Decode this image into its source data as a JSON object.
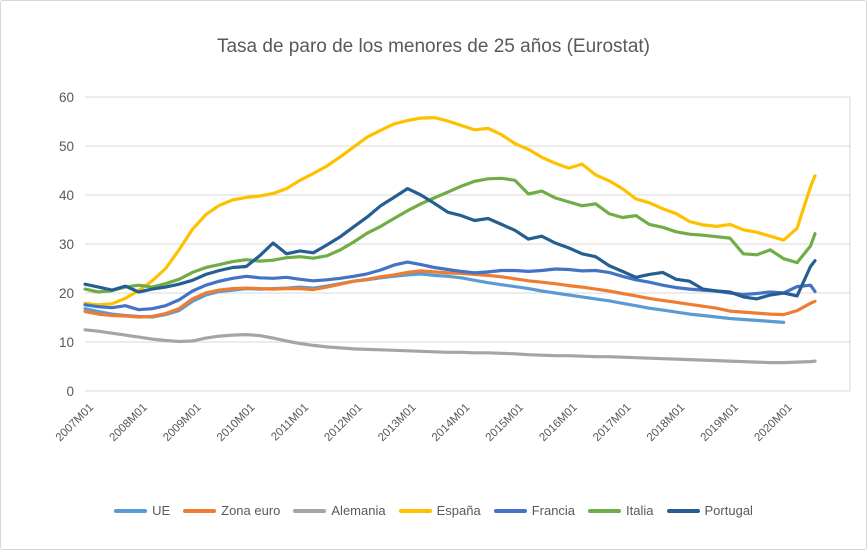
{
  "chart_title": "Tasa de paro de los menores de 25 años (Eurostat)",
  "colors": {
    "text": "#595959",
    "gridline": "#d9d9d9",
    "border": "#d7d7d7"
  },
  "chart_data": {
    "type": "line",
    "title": "Tasa de paro de los menores de 25 años (Eurostat)",
    "xlabel": "",
    "ylabel": "",
    "ylim": [
      0,
      60
    ],
    "yticks": [
      0,
      10,
      20,
      30,
      40,
      50,
      60
    ],
    "grid": "horizontal",
    "legend_position": "bottom",
    "x_tick_labels": [
      "2007M01",
      "2008M01",
      "2009M01",
      "2010M01",
      "2011M01",
      "2012M01",
      "2013M01",
      "2014M01",
      "2015M01",
      "2016M01",
      "2017M01",
      "2018M01",
      "2019M01",
      "2020M01"
    ],
    "categories": [
      "2007M01",
      "2007M04",
      "2007M07",
      "2007M10",
      "2008M01",
      "2008M04",
      "2008M07",
      "2008M10",
      "2009M01",
      "2009M04",
      "2009M07",
      "2009M10",
      "2010M01",
      "2010M04",
      "2010M07",
      "2010M10",
      "2011M01",
      "2011M04",
      "2011M07",
      "2011M10",
      "2012M01",
      "2012M04",
      "2012M07",
      "2012M10",
      "2013M01",
      "2013M04",
      "2013M07",
      "2013M10",
      "2014M01",
      "2014M04",
      "2014M07",
      "2014M10",
      "2015M01",
      "2015M04",
      "2015M07",
      "2015M10",
      "2016M01",
      "2016M04",
      "2016M07",
      "2016M10",
      "2017M01",
      "2017M04",
      "2017M07",
      "2017M10",
      "2018M01",
      "2018M04",
      "2018M07",
      "2018M10",
      "2019M01",
      "2019M04",
      "2019M07",
      "2019M10",
      "2020M01",
      "2020M04",
      "2020M07",
      "2020M08"
    ],
    "series": [
      {
        "name": "UE",
        "color": "#5B9BD5",
        "values": [
          16.8,
          16.2,
          15.7,
          15.4,
          15.2,
          15.1,
          15.6,
          16.4,
          18.3,
          19.6,
          20.3,
          20.6,
          20.9,
          20.8,
          20.9,
          21.0,
          21.2,
          21.0,
          21.4,
          21.9,
          22.4,
          22.7,
          23.1,
          23.4,
          23.7,
          23.9,
          23.6,
          23.4,
          23.1,
          22.6,
          22.1,
          21.7,
          21.3,
          20.9,
          20.4,
          20.0,
          19.6,
          19.2,
          18.8,
          18.4,
          17.9,
          17.4,
          16.9,
          16.5,
          16.1,
          15.7,
          15.4,
          15.1,
          14.8,
          14.6,
          14.4,
          14.2,
          14.0,
          null,
          null,
          null
        ]
      },
      {
        "name": "Zona euro",
        "color": "#ED7D31",
        "values": [
          16.2,
          15.7,
          15.4,
          15.3,
          15.1,
          15.2,
          15.8,
          16.8,
          18.8,
          20.0,
          20.6,
          20.9,
          21.0,
          20.9,
          20.8,
          20.9,
          20.9,
          20.7,
          21.2,
          21.8,
          22.4,
          22.8,
          23.3,
          23.7,
          24.2,
          24.5,
          24.3,
          24.1,
          24.0,
          23.8,
          23.6,
          23.3,
          22.9,
          22.5,
          22.2,
          21.9,
          21.5,
          21.2,
          20.8,
          20.4,
          19.9,
          19.4,
          18.9,
          18.5,
          18.1,
          17.7,
          17.3,
          16.9,
          16.3,
          16.1,
          15.9,
          15.7,
          15.6,
          16.4,
          17.9,
          18.3
        ]
      },
      {
        "name": "Alemania",
        "color": "#A5A5A5",
        "values": [
          12.5,
          12.2,
          11.8,
          11.4,
          11.0,
          10.6,
          10.3,
          10.1,
          10.2,
          10.8,
          11.2,
          11.4,
          11.5,
          11.3,
          10.8,
          10.2,
          9.7,
          9.3,
          9.0,
          8.8,
          8.6,
          8.5,
          8.4,
          8.3,
          8.2,
          8.1,
          8.0,
          7.9,
          7.9,
          7.8,
          7.8,
          7.7,
          7.6,
          7.4,
          7.3,
          7.2,
          7.2,
          7.1,
          7.0,
          7.0,
          6.9,
          6.8,
          6.7,
          6.6,
          6.5,
          6.4,
          6.3,
          6.2,
          6.1,
          6.0,
          5.9,
          5.8,
          5.8,
          5.9,
          6.0,
          6.1
        ]
      },
      {
        "name": "España",
        "color": "#FFC000",
        "values": [
          17.9,
          17.6,
          17.8,
          18.9,
          20.5,
          22.5,
          25.0,
          28.8,
          33.0,
          36.0,
          37.9,
          39.0,
          39.5,
          39.8,
          40.3,
          41.3,
          43.0,
          44.4,
          45.9,
          47.8,
          49.8,
          51.8,
          53.2,
          54.5,
          55.2,
          55.7,
          55.8,
          55.1,
          54.2,
          53.3,
          53.6,
          52.3,
          50.5,
          49.3,
          47.7,
          46.5,
          45.5,
          46.3,
          44.1,
          42.9,
          41.3,
          39.2,
          38.4,
          37.2,
          36.2,
          34.6,
          33.9,
          33.6,
          34.0,
          32.9,
          32.4,
          31.6,
          30.8,
          33.2,
          41.7,
          43.9
        ]
      },
      {
        "name": "Francia",
        "color": "#4472C4",
        "values": [
          17.6,
          17.2,
          17.0,
          17.4,
          16.6,
          16.8,
          17.4,
          18.6,
          20.4,
          21.6,
          22.4,
          23.0,
          23.4,
          23.1,
          23.0,
          23.2,
          22.8,
          22.5,
          22.7,
          23.0,
          23.4,
          23.9,
          24.7,
          25.7,
          26.3,
          25.8,
          25.2,
          24.8,
          24.4,
          24.1,
          24.3,
          24.6,
          24.6,
          24.4,
          24.6,
          24.9,
          24.8,
          24.5,
          24.6,
          24.2,
          23.4,
          22.7,
          22.2,
          21.6,
          21.1,
          20.8,
          20.6,
          20.4,
          20.0,
          19.7,
          19.9,
          20.2,
          20.0,
          21.3,
          21.6,
          20.3
        ]
      },
      {
        "name": "Italia",
        "color": "#70AD47",
        "values": [
          20.8,
          20.2,
          20.5,
          21.2,
          21.6,
          21.2,
          21.9,
          22.8,
          24.2,
          25.2,
          25.8,
          26.4,
          26.8,
          26.5,
          26.7,
          27.2,
          27.4,
          27.1,
          27.6,
          28.8,
          30.4,
          32.2,
          33.6,
          35.2,
          36.8,
          38.2,
          39.4,
          40.6,
          41.8,
          42.8,
          43.3,
          43.4,
          43.0,
          40.2,
          40.8,
          39.4,
          38.6,
          37.8,
          38.2,
          36.2,
          35.4,
          35.8,
          34.0,
          33.4,
          32.5,
          32.0,
          31.8,
          31.5,
          31.2,
          28.0,
          27.8,
          28.8,
          27.0,
          26.2,
          29.6,
          32.1
        ]
      },
      {
        "name": "Portugal",
        "color": "#255E91",
        "values": [
          21.8,
          21.2,
          20.6,
          21.4,
          20.2,
          20.8,
          21.2,
          21.8,
          22.6,
          23.8,
          24.6,
          25.2,
          25.4,
          27.6,
          30.2,
          28.0,
          28.6,
          28.2,
          29.8,
          31.5,
          33.5,
          35.5,
          37.8,
          39.5,
          41.3,
          40.0,
          38.3,
          36.5,
          35.8,
          34.8,
          35.2,
          34.0,
          32.8,
          31.0,
          31.6,
          30.2,
          29.2,
          28.0,
          27.4,
          25.6,
          24.4,
          23.2,
          23.8,
          24.2,
          22.8,
          22.4,
          20.8,
          20.4,
          20.2,
          19.2,
          18.8,
          19.6,
          20.0,
          19.4,
          25.4,
          26.6
        ]
      }
    ]
  }
}
